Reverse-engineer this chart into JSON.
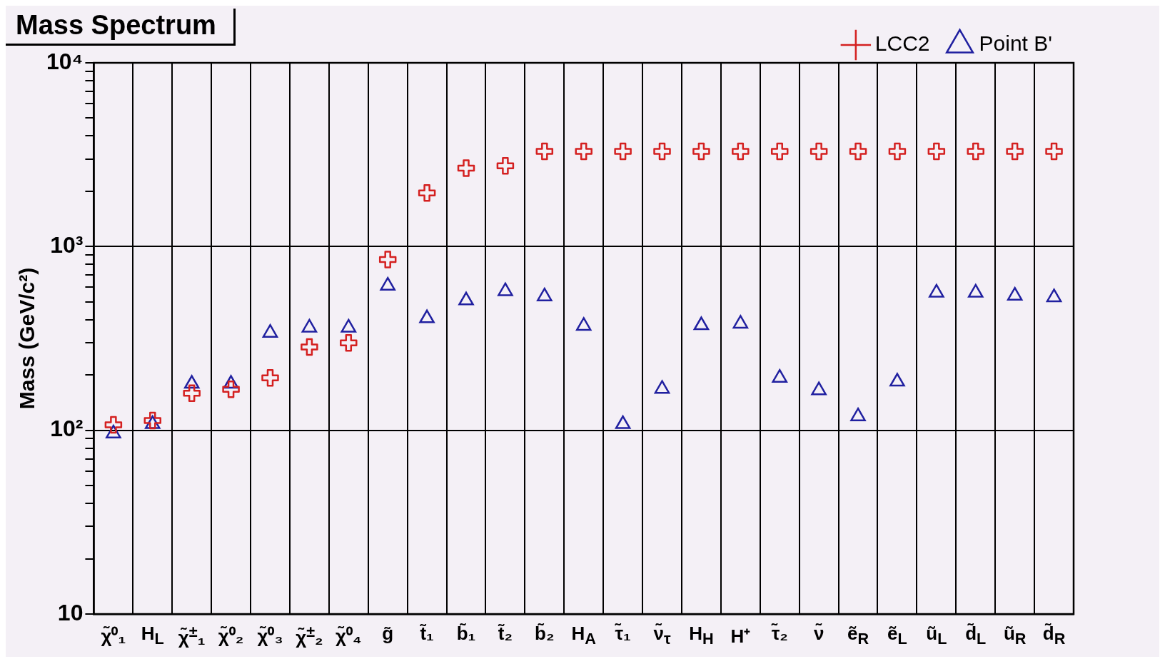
{
  "chart_data": {
    "type": "scatter",
    "title": "Mass Spectrum",
    "ylabel": "Mass (GeV/c²)",
    "categories": [
      "χ̃⁰₁",
      "H$_{L}$",
      "χ̃$^{±}$₁",
      "χ̃⁰₂",
      "χ̃⁰₃",
      "χ̃$^{±}$₂",
      "χ̃⁰₄",
      "g̃",
      "t̃₁",
      "b̃₁",
      "t̃₂",
      "b̃₂",
      "H$_{A}$",
      "τ̃₁",
      "ν̃$_{τ}$",
      "H$_{H}$",
      "H⁺",
      "τ̃₂",
      "ν̃",
      "ẽ$_{R}$",
      "ẽ$_{L}$",
      "ũ$_{L}$",
      "d̃$_{L}$",
      "ũ$_{R}$",
      "d̃$_{R}$"
    ],
    "ylim": [
      10,
      10000
    ],
    "yticks": [
      10,
      {
        "value": 20,
        "label": null
      },
      {
        "value": 30,
        "label": null
      },
      {
        "value": 40,
        "label": null
      },
      {
        "value": 50,
        "label": null
      },
      {
        "value": 60,
        "label": null
      },
      {
        "value": 70,
        "label": null
      },
      {
        "value": 80,
        "label": null
      },
      {
        "value": 90,
        "label": null
      },
      {
        "value": 100,
        "label": "10²"
      },
      {
        "value": 200,
        "label": null
      },
      {
        "value": 300,
        "label": null
      },
      {
        "value": 400,
        "label": null
      },
      {
        "value": 500,
        "label": null
      },
      {
        "value": 600,
        "label": null
      },
      {
        "value": 700,
        "label": null
      },
      {
        "value": 800,
        "label": null
      },
      {
        "value": 900,
        "label": null
      },
      {
        "value": 1000,
        "label": "10³"
      },
      {
        "value": 2000,
        "label": null
      },
      {
        "value": 3000,
        "label": null
      },
      {
        "value": 4000,
        "label": null
      },
      {
        "value": 5000,
        "label": null
      },
      {
        "value": 6000,
        "label": null
      },
      {
        "value": 7000,
        "label": null
      },
      {
        "value": 8000,
        "label": null
      },
      {
        "value": 9000,
        "label": null
      },
      {
        "value": 10000,
        "label": "10⁴"
      }
    ],
    "log": "y",
    "grid": true,
    "legend": "top right",
    "series": [
      {
        "name": "LCC2",
        "color": "#d42020",
        "marker": "cross",
        "values": [
          107,
          113,
          159,
          167,
          193,
          284,
          299,
          850,
          1960,
          2670,
          2750,
          3300,
          3300,
          3300,
          3300,
          3300,
          3300,
          3300,
          3300,
          3300,
          3300,
          3300,
          3300,
          3300,
          3300
        ]
      },
      {
        "name": "Point B'",
        "color": "#2020a0",
        "marker": "triangle",
        "values": [
          96,
          108,
          179,
          179,
          339,
          362,
          362,
          612,
          407,
          509,
          571,
          535,
          370,
          108,
          168,
          373,
          380,
          193,
          165,
          119,
          184,
          561,
          561,
          540,
          529
        ]
      }
    ]
  }
}
